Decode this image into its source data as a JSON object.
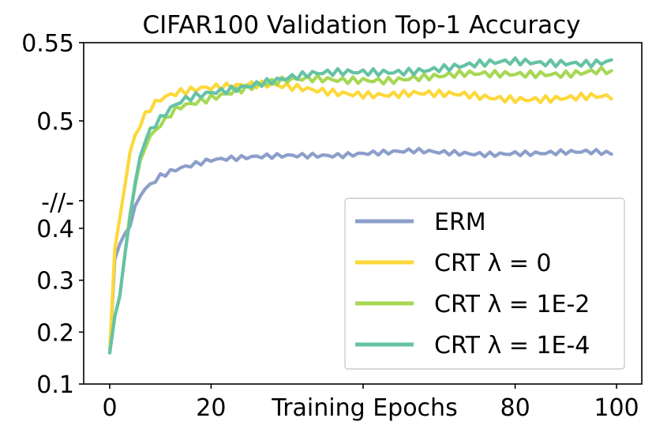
{
  "chart_data": {
    "type": "line",
    "title": "CIFAR100 Validation Top-1 Accuracy",
    "xlabel": "Training Epochs",
    "ylabel": "",
    "xlim": [
      0,
      100
    ],
    "ylim": [
      0.1,
      0.55
    ],
    "axis_break": {
      "label": "-//-",
      "lower_segment": [
        0.1,
        0.4
      ],
      "upper_segment": [
        0.43,
        0.55
      ]
    },
    "x_ticks": [
      {
        "value": 0,
        "label": "0"
      },
      {
        "value": 20,
        "label": "20"
      },
      {
        "value": 80,
        "label": "80"
      },
      {
        "value": 100,
        "label": "100"
      }
    ],
    "y_ticks": [
      {
        "value": 0.55,
        "label": "0.55"
      },
      {
        "value": 0.5,
        "label": "0.5"
      },
      {
        "value": 0.4,
        "label": "0.4"
      },
      {
        "value": 0.3,
        "label": "0.3"
      },
      {
        "value": 0.2,
        "label": "0.2"
      },
      {
        "value": 0.1,
        "label": "0.1"
      }
    ],
    "legend_position": "lower-right",
    "x": [
      0,
      1,
      2,
      3,
      4,
      5,
      6,
      7,
      8,
      10,
      12,
      14,
      16,
      18,
      20,
      25,
      30,
      35,
      40,
      45,
      50,
      55,
      60,
      65,
      70,
      75,
      80,
      85,
      90,
      95,
      99
    ],
    "series": [
      {
        "name": "ERM",
        "legend_label": "ERM",
        "color": "#8c9fca",
        "values": [
          0.16,
          0.34,
          0.37,
          0.39,
          0.405,
          0.42,
          0.432,
          0.438,
          0.442,
          0.45,
          0.454,
          0.457,
          0.459,
          0.461,
          0.463,
          0.464,
          0.466,
          0.468,
          0.469,
          0.469,
          0.47,
          0.47,
          0.471,
          0.47,
          0.47,
          0.47,
          0.471,
          0.47,
          0.47,
          0.47,
          0.469
        ]
      },
      {
        "name": "CRT λ=0",
        "legend_label": "CRT λ = 0",
        "color": "#fdd83a",
        "values": [
          0.16,
          0.36,
          0.41,
          0.44,
          0.47,
          0.486,
          0.496,
          0.504,
          0.509,
          0.515,
          0.518,
          0.52,
          0.521,
          0.522,
          0.522,
          0.522,
          0.522,
          0.521,
          0.52,
          0.519,
          0.518,
          0.517,
          0.517,
          0.516,
          0.516,
          0.515,
          0.515,
          0.515,
          0.515,
          0.515,
          0.514
        ]
      },
      {
        "name": "CRT λ=1E-2",
        "legend_label": "CRT λ = 1E-2",
        "color": "#a6d854",
        "values": [
          0.16,
          0.23,
          0.27,
          0.35,
          0.41,
          0.44,
          0.46,
          0.475,
          0.485,
          0.496,
          0.505,
          0.51,
          0.512,
          0.514,
          0.516,
          0.52,
          0.523,
          0.525,
          0.526,
          0.526,
          0.527,
          0.527,
          0.528,
          0.528,
          0.529,
          0.529,
          0.53,
          0.531,
          0.531,
          0.532,
          0.532
        ]
      },
      {
        "name": "CRT λ=1E-4",
        "legend_label": "CRT λ = 1E-4",
        "color": "#66c2a5",
        "values": [
          0.16,
          0.23,
          0.27,
          0.35,
          0.41,
          0.44,
          0.465,
          0.48,
          0.49,
          0.5,
          0.507,
          0.512,
          0.515,
          0.517,
          0.519,
          0.522,
          0.525,
          0.527,
          0.529,
          0.53,
          0.531,
          0.532,
          0.533,
          0.534,
          0.535,
          0.536,
          0.537,
          0.537,
          0.538,
          0.538,
          0.539
        ]
      }
    ]
  }
}
